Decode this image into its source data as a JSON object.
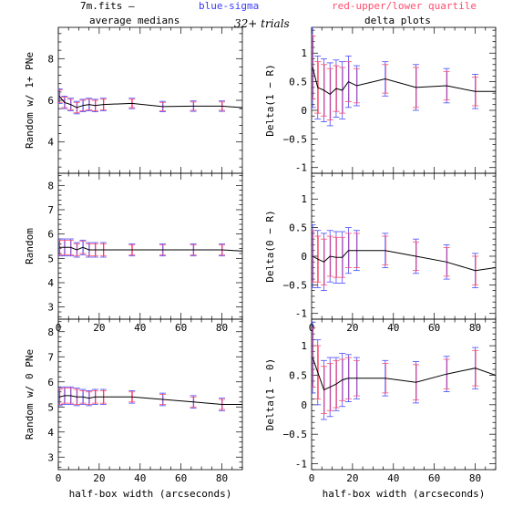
{
  "header": {
    "file_label": "7m.fits  —",
    "blue_label": "blue-sigma",
    "red_label": "red-upper/lower quartile",
    "left_title": "average medians",
    "trials_label": "32+ trials",
    "right_title": "delta plots"
  },
  "colors": {
    "line": "#000000",
    "sigma": "#4b4bff",
    "quartile": "#ff4b6e",
    "text": "#000000",
    "blue_text": "#3a3aff",
    "red_text": "#ff4d6d"
  },
  "chart_data": [
    {
      "type": "line",
      "xlabel": "",
      "ylabel": "Random w/ 1+ PNe",
      "xlim": [
        0,
        90
      ],
      "ylim": [
        2.5,
        9.5
      ],
      "yticks": [
        4,
        6,
        8
      ],
      "xticks": [],
      "x": [
        0.5,
        3,
        6,
        9,
        12,
        15,
        18,
        22,
        36,
        51,
        66,
        80,
        90
      ],
      "values": [
        6.2,
        5.9,
        5.8,
        5.65,
        5.75,
        5.8,
        5.75,
        5.8,
        5.85,
        5.7,
        5.72,
        5.72,
        5.65
      ],
      "err_points": [
        0.5,
        3,
        6,
        9,
        12,
        15,
        18,
        22,
        36,
        51,
        66,
        80
      ],
      "sigma": [
        0.35,
        0.3,
        0.3,
        0.3,
        0.3,
        0.3,
        0.3,
        0.3,
        0.25,
        0.25,
        0.25,
        0.25
      ],
      "quartile": [
        0.3,
        0.25,
        0.25,
        0.25,
        0.25,
        0.25,
        0.25,
        0.25,
        0.2,
        0.2,
        0.2,
        0.2
      ]
    },
    {
      "type": "line",
      "xlabel": "",
      "ylabel": "Random",
      "xlim": [
        0,
        90
      ],
      "ylim": [
        2.5,
        8.5
      ],
      "yticks": [
        3,
        4,
        5,
        6,
        7,
        8
      ],
      "xticks": [
        0,
        20,
        40,
        60,
        80
      ],
      "x": [
        0.5,
        3,
        6,
        9,
        12,
        15,
        18,
        22,
        36,
        51,
        66,
        80,
        90
      ],
      "values": [
        5.45,
        5.45,
        5.45,
        5.35,
        5.45,
        5.35,
        5.35,
        5.35,
        5.35,
        5.35,
        5.35,
        5.35,
        5.3
      ],
      "err_points": [
        0.5,
        3,
        6,
        9,
        12,
        15,
        18,
        22,
        36,
        51,
        66,
        80
      ],
      "sigma": [
        0.35,
        0.35,
        0.35,
        0.3,
        0.3,
        0.3,
        0.3,
        0.3,
        0.25,
        0.25,
        0.25,
        0.25
      ],
      "quartile": [
        0.3,
        0.3,
        0.3,
        0.25,
        0.25,
        0.25,
        0.25,
        0.25,
        0.2,
        0.2,
        0.2,
        0.2
      ]
    },
    {
      "type": "line",
      "xlabel": "half-box width (arcseconds)",
      "ylabel": "Random w/ 0 PNe",
      "xlim": [
        0,
        90
      ],
      "ylim": [
        2.5,
        8.5
      ],
      "yticks": [
        3,
        4,
        5,
        6,
        7,
        8
      ],
      "xticks": [
        0,
        20,
        40,
        60,
        80
      ],
      "x": [
        0.5,
        3,
        6,
        9,
        12,
        15,
        18,
        22,
        36,
        51,
        66,
        80,
        90
      ],
      "values": [
        5.4,
        5.45,
        5.45,
        5.4,
        5.4,
        5.35,
        5.4,
        5.4,
        5.4,
        5.3,
        5.2,
        5.1,
        5.1
      ],
      "err_points": [
        0.5,
        3,
        6,
        9,
        12,
        15,
        18,
        22,
        36,
        51,
        66,
        80
      ],
      "sigma": [
        0.35,
        0.35,
        0.35,
        0.35,
        0.3,
        0.3,
        0.3,
        0.3,
        0.25,
        0.25,
        0.25,
        0.25
      ],
      "quartile": [
        0.3,
        0.3,
        0.3,
        0.3,
        0.25,
        0.25,
        0.25,
        0.25,
        0.2,
        0.2,
        0.2,
        0.2
      ]
    },
    {
      "type": "line",
      "xlabel": "",
      "ylabel": "Delta(1 − R)",
      "xlim": [
        0,
        90
      ],
      "ylim": [
        -1.1,
        1.45
      ],
      "yticks": [
        -1,
        -0.5,
        0,
        0.5,
        1
      ],
      "xticks": [],
      "x": [
        0.5,
        3,
        6,
        9,
        12,
        15,
        18,
        22,
        36,
        51,
        66,
        80,
        90
      ],
      "values": [
        0.75,
        0.4,
        0.35,
        0.28,
        0.38,
        0.35,
        0.5,
        0.43,
        0.55,
        0.4,
        0.43,
        0.33,
        0.33
      ],
      "err_points": [
        0.5,
        3,
        6,
        9,
        12,
        15,
        18,
        22,
        36,
        51,
        66,
        80
      ],
      "sigma": [
        0.7,
        0.55,
        0.55,
        0.55,
        0.5,
        0.5,
        0.45,
        0.35,
        0.3,
        0.4,
        0.3,
        0.3
      ],
      "quartile": [
        0.55,
        0.45,
        0.45,
        0.45,
        0.4,
        0.4,
        0.35,
        0.3,
        0.25,
        0.35,
        0.25,
        0.25
      ]
    },
    {
      "type": "line",
      "xlabel": "",
      "ylabel": "Delta(0 − R)",
      "xlim": [
        0,
        90
      ],
      "ylim": [
        -1.1,
        1.45
      ],
      "yticks": [
        -1,
        -0.5,
        0,
        0.5,
        1
      ],
      "xticks": [
        0,
        20,
        40,
        60,
        80
      ],
      "x": [
        0.5,
        3,
        6,
        9,
        12,
        15,
        18,
        22,
        36,
        51,
        66,
        80,
        90
      ],
      "values": [
        0.0,
        -0.05,
        -0.1,
        0.0,
        -0.02,
        -0.02,
        0.1,
        0.1,
        0.1,
        0.0,
        -0.1,
        -0.25,
        -0.2
      ],
      "err_points": [
        0.5,
        3,
        6,
        9,
        12,
        15,
        18,
        22,
        36,
        51,
        66,
        80
      ],
      "sigma": [
        0.55,
        0.5,
        0.5,
        0.45,
        0.45,
        0.45,
        0.4,
        0.35,
        0.3,
        0.3,
        0.3,
        0.3
      ],
      "quartile": [
        0.45,
        0.4,
        0.4,
        0.35,
        0.35,
        0.35,
        0.3,
        0.3,
        0.25,
        0.25,
        0.25,
        0.25
      ]
    },
    {
      "type": "line",
      "xlabel": "half-box width (arcseconds)",
      "ylabel": "Delta(1 − 0)",
      "xlim": [
        0,
        90
      ],
      "ylim": [
        -1.1,
        1.45
      ],
      "yticks": [
        -1,
        -0.5,
        0,
        0.5,
        1
      ],
      "xticks": [
        0,
        20,
        40,
        60,
        80
      ],
      "x": [
        0.5,
        3,
        6,
        9,
        12,
        15,
        18,
        22,
        36,
        51,
        66,
        80,
        90
      ],
      "values": [
        0.8,
        0.55,
        0.25,
        0.3,
        0.35,
        0.42,
        0.45,
        0.45,
        0.45,
        0.38,
        0.52,
        0.62,
        0.5
      ],
      "err_points": [
        0.5,
        3,
        6,
        9,
        12,
        15,
        18,
        22,
        36,
        51,
        66,
        80
      ],
      "sigma": [
        0.6,
        0.55,
        0.5,
        0.5,
        0.45,
        0.45,
        0.4,
        0.35,
        0.3,
        0.35,
        0.3,
        0.35
      ],
      "quartile": [
        0.5,
        0.45,
        0.4,
        0.4,
        0.4,
        0.35,
        0.35,
        0.3,
        0.25,
        0.3,
        0.25,
        0.3
      ]
    }
  ]
}
